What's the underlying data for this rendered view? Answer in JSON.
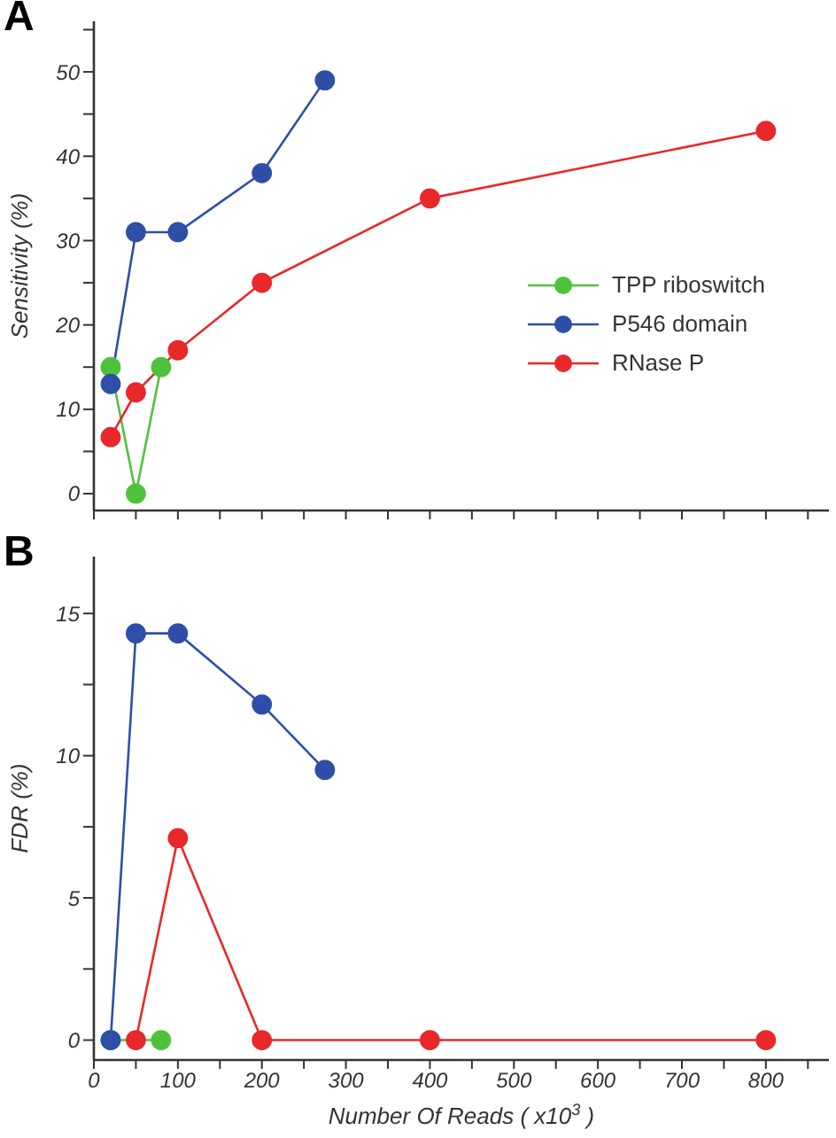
{
  "chart_data": [
    {
      "type": "line",
      "title": "A",
      "ylabel": "Sensitivity (%)",
      "xlim": [
        0,
        875
      ],
      "ylim": [
        -2,
        56
      ],
      "xticks": [
        {
          "value": 0,
          "label": null
        },
        {
          "value": 50,
          "label": null
        },
        {
          "value": 100,
          "label": null
        },
        {
          "value": 150,
          "label": null
        },
        {
          "value": 200,
          "label": null
        },
        {
          "value": 250,
          "label": null
        },
        {
          "value": 300,
          "label": null
        },
        {
          "value": 350,
          "label": null
        },
        {
          "value": 400,
          "label": null
        },
        {
          "value": 450,
          "label": null
        },
        {
          "value": 500,
          "label": null
        },
        {
          "value": 550,
          "label": null
        },
        {
          "value": 600,
          "label": null
        },
        {
          "value": 650,
          "label": null
        },
        {
          "value": 700,
          "label": null
        },
        {
          "value": 750,
          "label": null
        },
        {
          "value": 800,
          "label": null
        },
        {
          "value": 850,
          "label": null
        }
      ],
      "yticks": [
        0,
        {
          "value": 5,
          "label": null
        },
        10,
        {
          "value": 15,
          "label": null
        },
        20,
        {
          "value": 25,
          "label": null
        },
        30,
        {
          "value": 35,
          "label": null
        },
        40,
        {
          "value": 45,
          "label": null
        },
        50,
        {
          "value": 55,
          "label": null
        }
      ],
      "tick_labels": "y",
      "marker": "circle",
      "legend": "right",
      "grid": false,
      "series": [
        {
          "name": "TPP riboswitch",
          "color": "#4fc23c",
          "x": [
            20,
            50,
            80
          ],
          "values": [
            15,
            0,
            15
          ]
        },
        {
          "name": "P546 domain",
          "color": "#2e4ea8",
          "x": [
            20,
            50,
            100,
            200,
            275
          ],
          "values": [
            13,
            31,
            31,
            38,
            49
          ]
        },
        {
          "name": "RNase P",
          "color": "#e8282a",
          "x": [
            20,
            50,
            100,
            200,
            400,
            800
          ],
          "values": [
            6.7,
            12,
            17,
            25,
            35,
            43
          ]
        }
      ]
    },
    {
      "type": "line",
      "title": "B",
      "ylabel": "FDR (%)",
      "xlabel": "Number Of Reads ( x10$^{3}$ )",
      "xlim": [
        0,
        875
      ],
      "ylim": [
        -0.7,
        17
      ],
      "xticks": [
        0,
        {
          "value": 50,
          "label": null
        },
        100,
        {
          "value": 150,
          "label": null
        },
        200,
        {
          "value": 250,
          "label": null
        },
        300,
        {
          "value": 350,
          "label": null
        },
        400,
        {
          "value": 450,
          "label": null
        },
        500,
        {
          "value": 550,
          "label": null
        },
        600,
        {
          "value": 650,
          "label": null
        },
        700,
        {
          "value": 750,
          "label": null
        },
        800,
        {
          "value": 850,
          "label": null
        }
      ],
      "yticks": [
        0,
        {
          "value": 2.5,
          "label": null
        },
        5,
        {
          "value": 7.5,
          "label": null
        },
        10,
        {
          "value": 12.5,
          "label": null
        },
        15
      ],
      "marker": "circle",
      "legend": false,
      "grid": false,
      "series": [
        {
          "color": "#4fc23c",
          "x": [
            20,
            80
          ],
          "values": [
            0,
            0
          ]
        },
        {
          "color": "#2e4ea8",
          "x": [
            20,
            50,
            100,
            200,
            275
          ],
          "values": [
            0,
            14.3,
            14.3,
            11.8,
            9.5
          ]
        },
        {
          "color": "#e8282a",
          "x": [
            50,
            100,
            200,
            400,
            800
          ],
          "values": [
            0,
            7.1,
            0,
            0,
            0
          ]
        }
      ]
    }
  ]
}
